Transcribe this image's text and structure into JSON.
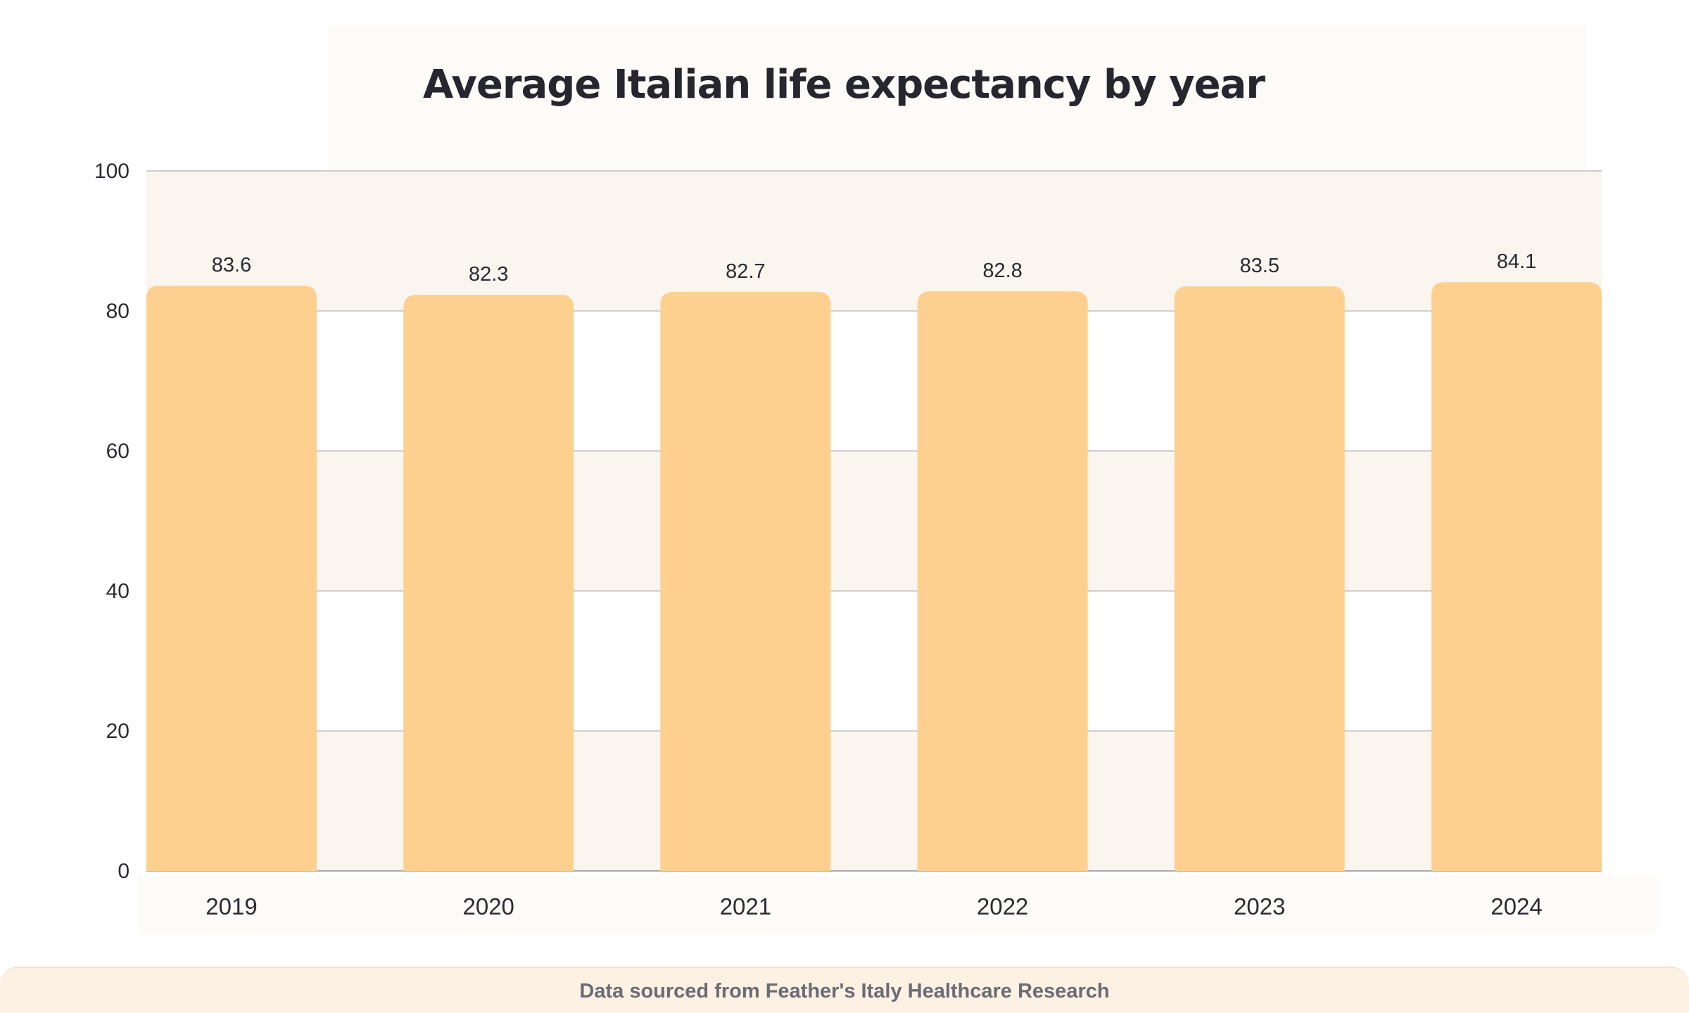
{
  "chart_data": {
    "type": "bar",
    "title": "Average Italian life expectancy by year",
    "categories": [
      "2019",
      "2020",
      "2021",
      "2022",
      "2023",
      "2024"
    ],
    "values": [
      83.6,
      82.3,
      82.7,
      82.8,
      83.5,
      84.1
    ],
    "value_labels": [
      "83.6",
      "82.3",
      "82.7",
      "82.8",
      "83.5",
      "84.1"
    ],
    "ylim": [
      0,
      100
    ],
    "yticks": [
      0,
      20,
      40,
      60,
      80,
      100
    ],
    "ytick_labels": [
      "0",
      "20",
      "40",
      "60",
      "80",
      "100"
    ],
    "xlabel": "",
    "ylabel": "",
    "grid": true,
    "legend": "none",
    "colors": {
      "bar": "#fed090",
      "band": "#faf5ee",
      "grid": "#cfcfcf",
      "text": "#2b2b33"
    }
  },
  "footer": {
    "source": "Data sourced from Feather's Italy Healthcare Research"
  }
}
